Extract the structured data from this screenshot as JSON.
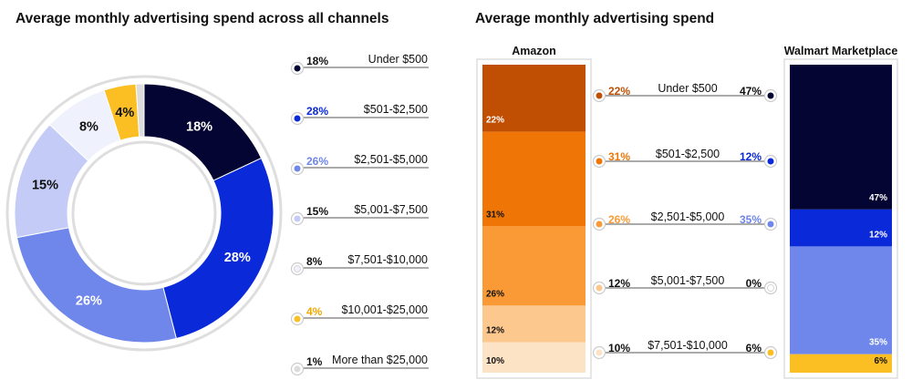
{
  "colors": {
    "c1": "#050533",
    "c2": "#0a29d8",
    "c3": "#6f86ea",
    "c4": "#c4cbf7",
    "c5": "#eff1fc",
    "c6": "#fbbf24",
    "c7": "#dcdcdc",
    "a1": "#c04f04",
    "a2": "#f07507",
    "a3": "#f99a36",
    "a4": "#fcc88d",
    "a5": "#fde3c5",
    "w1": "#050533",
    "w2": "#0a29d8",
    "w3": "#6f86ea",
    "w4": "#ffffff",
    "w5": "#fbbf24"
  },
  "chart_data": [
    {
      "type": "pie",
      "title": "Average monthly advertising spend across all channels",
      "categories": [
        "Under $500",
        "$501-$2,500",
        "$2,501-$5,000",
        "$5,001-$7,500",
        "$7,501-$10,000",
        "$10,001-$25,000",
        "More than $25,000"
      ],
      "values": [
        18,
        28,
        26,
        15,
        8,
        4,
        1
      ],
      "labels": [
        "18%",
        "28%",
        "26%",
        "15%",
        "8%",
        "4%",
        "1%"
      ],
      "colors": [
        "c1",
        "c2",
        "c3",
        "c4",
        "c5",
        "c6",
        "c7"
      ]
    },
    {
      "type": "bar",
      "title": "Average monthly advertising spend",
      "categories": [
        "Under $500",
        "$501-$2,500",
        "$2,501-$5,000",
        "$5,001-$7,500",
        "$7,501-$10,000"
      ],
      "series": [
        {
          "name": "Amazon",
          "values": [
            22,
            31,
            26,
            12,
            10
          ],
          "labels": [
            "22%",
            "31%",
            "26%",
            "12%",
            "10%"
          ],
          "colors": [
            "a1",
            "a2",
            "a3",
            "a4",
            "a5"
          ]
        },
        {
          "name": "Walmart Marketplace",
          "values": [
            47,
            12,
            35,
            0,
            6
          ],
          "labels": [
            "47%",
            "12%",
            "35%",
            "0%",
            "6%"
          ],
          "colors": [
            "w1",
            "w2",
            "w3",
            "w4",
            "w5"
          ]
        }
      ]
    }
  ]
}
